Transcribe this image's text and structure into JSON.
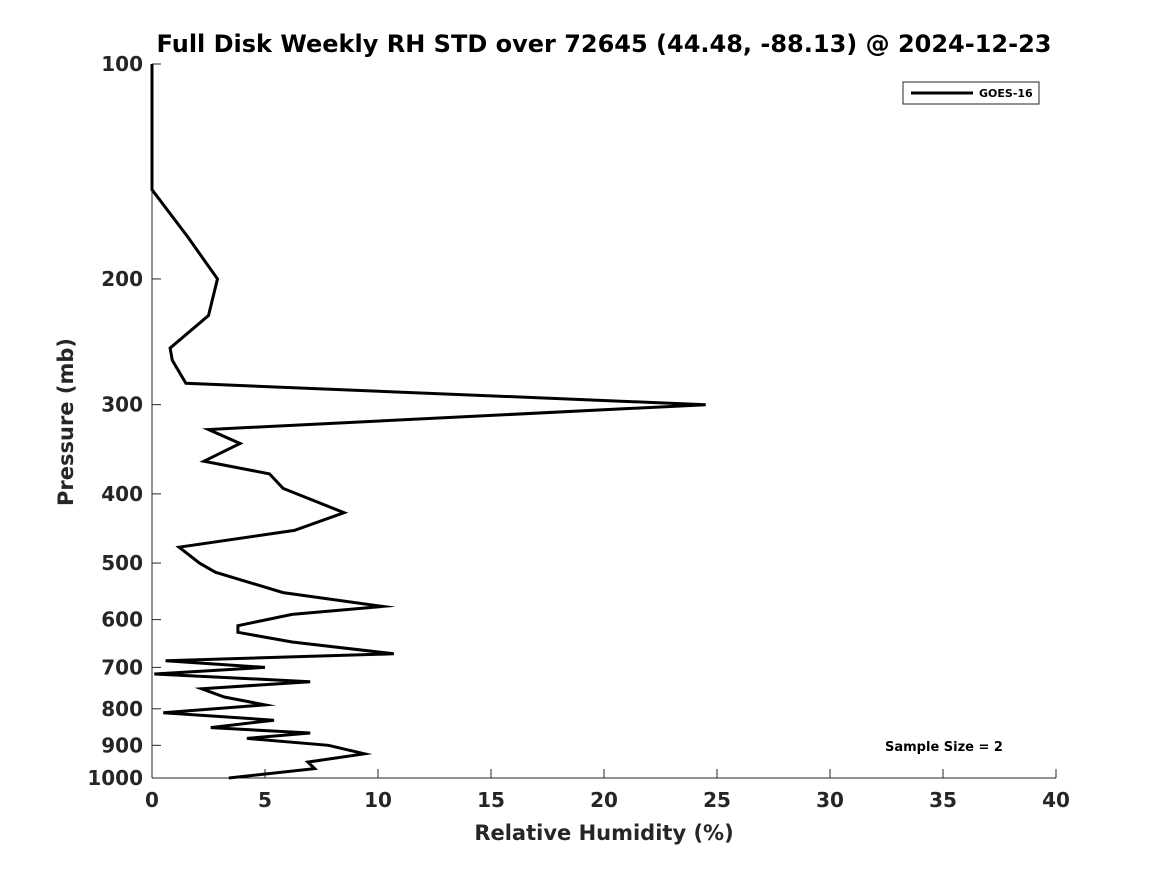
{
  "chart_data": {
    "type": "line",
    "title": "Full Disk Weekly RH STD over 72645 (44.48, -88.13) @ 2024-12-23",
    "xlabel": "Relative Humidity (%)",
    "ylabel": "Pressure (mb)",
    "xlim": [
      0,
      40
    ],
    "ylim": [
      100,
      1000
    ],
    "yscale": "log",
    "x_ticks": [
      0,
      5,
      10,
      15,
      20,
      25,
      30,
      35,
      40
    ],
    "x_tick_labels": [
      "0",
      "5",
      "10",
      "15",
      "20",
      "25",
      "30",
      "35",
      "40"
    ],
    "y_ticks": [
      100,
      200,
      300,
      400,
      500,
      600,
      700,
      800,
      900,
      1000
    ],
    "y_tick_labels": [
      "100",
      "200",
      "300",
      "400",
      "500",
      "600",
      "700",
      "800",
      "900",
      "1000"
    ],
    "grid": false,
    "legend_position": "top-right",
    "annotation": "Sample Size = 2",
    "series": [
      {
        "name": "GOES-16",
        "color": "#000000",
        "points": [
          [
            0,
            100
          ],
          [
            0,
            150
          ],
          [
            1.6,
            175
          ],
          [
            2.4,
            190
          ],
          [
            2.9,
            200
          ],
          [
            2.5,
            225
          ],
          [
            0.8,
            250
          ],
          [
            0.9,
            260
          ],
          [
            1.5,
            280
          ],
          [
            24.5,
            300
          ],
          [
            2.5,
            325
          ],
          [
            3.9,
            340
          ],
          [
            2.3,
            360
          ],
          [
            5.2,
            375
          ],
          [
            5.8,
            393
          ],
          [
            8.5,
            425
          ],
          [
            6.3,
            450
          ],
          [
            1.2,
            475
          ],
          [
            2.1,
            500
          ],
          [
            2.8,
            515
          ],
          [
            5.8,
            550
          ],
          [
            10.2,
            575
          ],
          [
            6.2,
            590
          ],
          [
            3.8,
            612
          ],
          [
            3.8,
            625
          ],
          [
            6.2,
            645
          ],
          [
            10.7,
            670
          ],
          [
            0.6,
            685
          ],
          [
            5.0,
            700
          ],
          [
            0.1,
            715
          ],
          [
            7.0,
            733
          ],
          [
            2.2,
            750
          ],
          [
            3.2,
            770
          ],
          [
            5.0,
            790
          ],
          [
            0.5,
            810
          ],
          [
            5.4,
            830
          ],
          [
            2.6,
            850
          ],
          [
            7.0,
            865
          ],
          [
            4.2,
            880
          ],
          [
            7.8,
            900
          ],
          [
            9.4,
            925
          ],
          [
            6.9,
            950
          ],
          [
            7.2,
            970
          ],
          [
            3.4,
            1000
          ]
        ]
      }
    ]
  }
}
